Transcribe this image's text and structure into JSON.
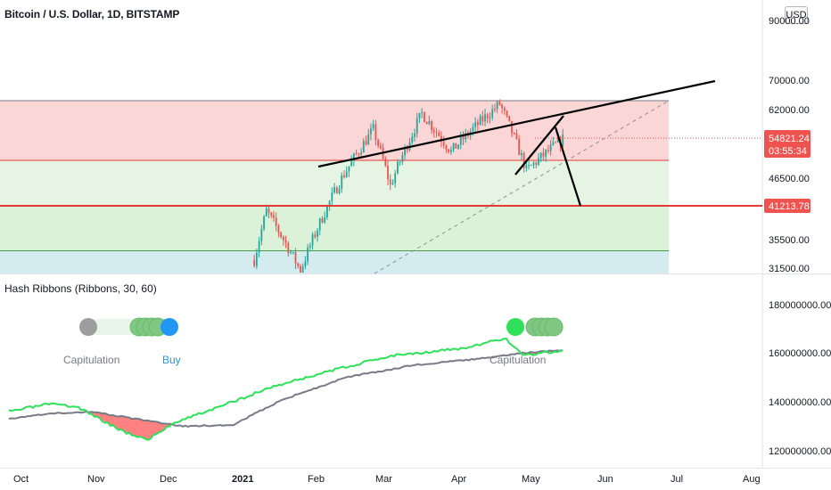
{
  "header": {
    "title": "Bitcoin / U.S. Dollar, 1D, BITSTAMP",
    "currency_badge": "USD"
  },
  "price_axis": {
    "labels": [
      "90000.00",
      "70000.00",
      "62000.00",
      "46500.00",
      "35500.00",
      "31500.00"
    ],
    "current_price": "54821.24",
    "countdown": "03:55:34",
    "support_level": "41213.78"
  },
  "indicator": {
    "title": "Hash Ribbons (Ribbons, 30, 60)",
    "axis_labels": [
      "180000000.00",
      "160000000.00",
      "140000000.00",
      "120000000.00"
    ],
    "signals": {
      "left_capitulation": "Capitulation",
      "left_buy": "Buy",
      "right_capitulation": "Capitulation"
    }
  },
  "time_axis": [
    "Oct",
    "Nov",
    "Dec",
    "2021",
    "Feb",
    "Mar",
    "Apr",
    "May",
    "Jun",
    "Jul",
    "Aug"
  ],
  "colors": {
    "bull": "#26a69a",
    "bear": "#ef5350",
    "fast_ribbon": "#2fe05a",
    "slow_ribbon": "#787b86",
    "buy_dot": "#2196f3",
    "price_tag": "#ef5350"
  },
  "chart_data": [
    {
      "type": "candlestick",
      "title": "Bitcoin / U.S. Dollar, 1D, BITSTAMP",
      "y_ticks": [
        31500,
        35500,
        41213.78,
        46500,
        54821.24,
        62000,
        70000,
        90000
      ],
      "ylim": [
        31000,
        90000
      ],
      "last_price": 54821.24,
      "horizontal_levels": [
        64600,
        51000,
        41213.78,
        33300
      ],
      "approx_closes": [
        {
          "date": "2021-01-03",
          "close": 33000
        },
        {
          "date": "2021-01-08",
          "close": 40500
        },
        {
          "date": "2021-01-22",
          "close": 31500
        },
        {
          "date": "2021-02-08",
          "close": 46500
        },
        {
          "date": "2021-02-21",
          "close": 57000
        },
        {
          "date": "2021-02-28",
          "close": 45000
        },
        {
          "date": "2021-03-13",
          "close": 61000
        },
        {
          "date": "2021-03-25",
          "close": 52000
        },
        {
          "date": "2021-04-14",
          "close": 63500
        },
        {
          "date": "2021-04-25",
          "close": 48000
        },
        {
          "date": "2021-05-10",
          "close": 54821.24
        }
      ]
    },
    {
      "type": "line",
      "title": "Hash Ribbons (Ribbons, 30, 60)",
      "y_ticks": [
        120000000,
        140000000,
        160000000,
        180000000
      ],
      "ylim": [
        118000000,
        185000000
      ],
      "series": [
        {
          "name": "",
          "color": "#2fe05a",
          "points": [
            [
              "2020-09-24",
              136000000
            ],
            [
              "2020-10-10",
              139000000
            ],
            [
              "2020-10-22",
              138000000
            ],
            [
              "2020-11-10",
              128000000
            ],
            [
              "2020-11-20",
              124500000
            ],
            [
              "2020-12-02",
              132000000
            ],
            [
              "2020-12-20",
              138000000
            ],
            [
              "2021-01-10",
              146000000
            ],
            [
              "2021-02-01",
              152000000
            ],
            [
              "2021-03-01",
              159000000
            ],
            [
              "2021-04-01",
              162000000
            ],
            [
              "2021-04-16",
              166000000
            ],
            [
              "2021-04-24",
              159000000
            ],
            [
              "2021-05-10",
              161000000
            ]
          ]
        },
        {
          "name": "",
          "color": "#787b86",
          "points": [
            [
              "2020-09-24",
              133000000
            ],
            [
              "2020-10-10",
              135000000
            ],
            [
              "2020-10-28",
              136000000
            ],
            [
              "2020-11-15",
              133000000
            ],
            [
              "2020-12-05",
              130000000
            ],
            [
              "2020-12-25",
              130500000
            ],
            [
              "2021-01-15",
              141000000
            ],
            [
              "2021-02-10",
              150000000
            ],
            [
              "2021-03-10",
              155000000
            ],
            [
              "2021-04-10",
              158000000
            ],
            [
              "2021-04-24",
              160000000
            ],
            [
              "2021-05-10",
              161000000
            ]
          ]
        }
      ]
    }
  ]
}
